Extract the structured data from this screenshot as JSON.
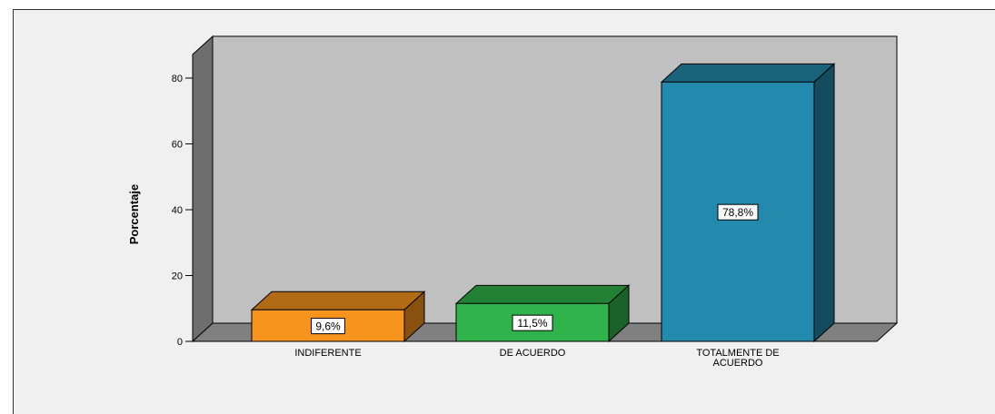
{
  "chart_data": {
    "type": "bar",
    "title": "",
    "xlabel": "",
    "ylabel": "Porcentaje",
    "ylim": [
      0,
      80
    ],
    "yticks": [
      0,
      20,
      40,
      60,
      80
    ],
    "grid": false,
    "categories": [
      "INDIFERENTE",
      "DE ACUERDO",
      "TOTALMENTE DE ACUERDO"
    ],
    "category_lines": [
      [
        "INDIFERENTE"
      ],
      [
        "DE ACUERDO"
      ],
      [
        "TOTALMENTE DE",
        "ACUERDO"
      ]
    ],
    "values": [
      9.6,
      11.5,
      78.8
    ],
    "data_labels": [
      "9,6%",
      "11,5%",
      "78,8%"
    ],
    "colors": [
      "#f7941d",
      "#2fb34a",
      "#2389ad"
    ],
    "wall_color": "#c0c0c0",
    "floor_color": "#808080"
  }
}
